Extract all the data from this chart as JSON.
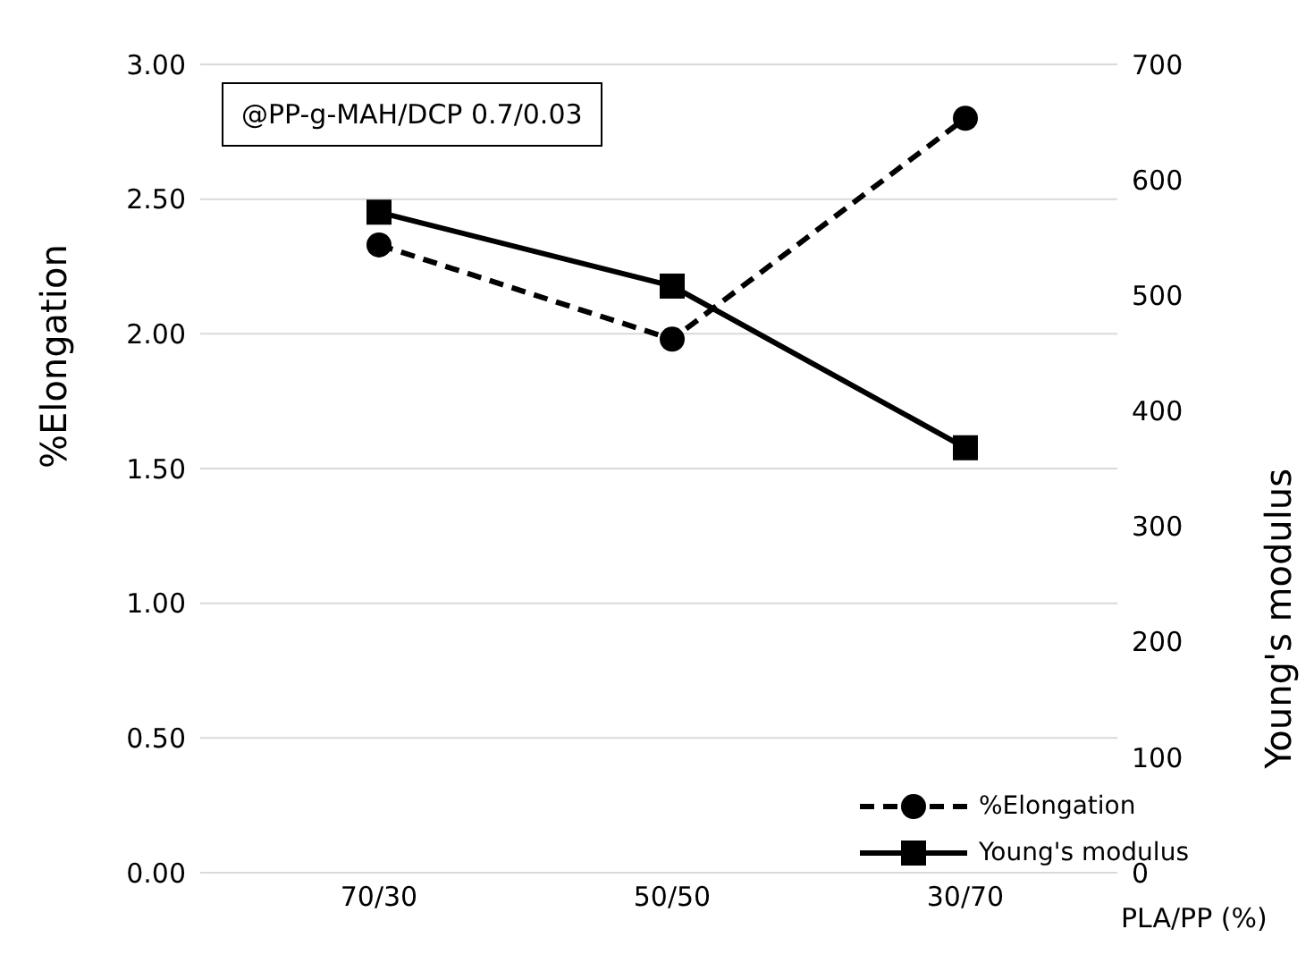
{
  "chart_data": {
    "type": "line",
    "categories": [
      "70/30",
      "50/50",
      "30/70"
    ],
    "xlabel": "PLA/PP (%)",
    "ylabel": "%Elongation",
    "y2label": "Young's modulus",
    "annotations": [
      "@PP-g-MAH/DCP 0.7/0.03"
    ],
    "series": [
      {
        "name": "%Elongation",
        "color": "#000000",
        "values": [
          2.33,
          1.98,
          2.8
        ],
        "marker": "circle",
        "line_style": "dashed"
      },
      {
        "name": "Young's modulus",
        "color": "#000000",
        "values": [
          572,
          508,
          368
        ],
        "marker": "square",
        "line_style": "solid",
        "axis": "y2"
      }
    ],
    "ylim": [
      0,
      3
    ],
    "yticks": [
      {
        "value": 0,
        "label": "0.00"
      },
      {
        "value": 0.5,
        "label": "0.50"
      },
      {
        "value": 1,
        "label": "1.00"
      },
      {
        "value": 1.5,
        "label": "1.50"
      },
      {
        "value": 2,
        "label": "2.00"
      },
      {
        "value": 2.5,
        "label": "2.50"
      },
      {
        "value": 3,
        "label": "3.00"
      }
    ],
    "y2lim": [
      0,
      700
    ],
    "y2ticks": [
      0,
      100,
      200,
      300,
      400,
      500,
      600,
      700
    ],
    "grid": "y",
    "legend": "bottom right"
  }
}
